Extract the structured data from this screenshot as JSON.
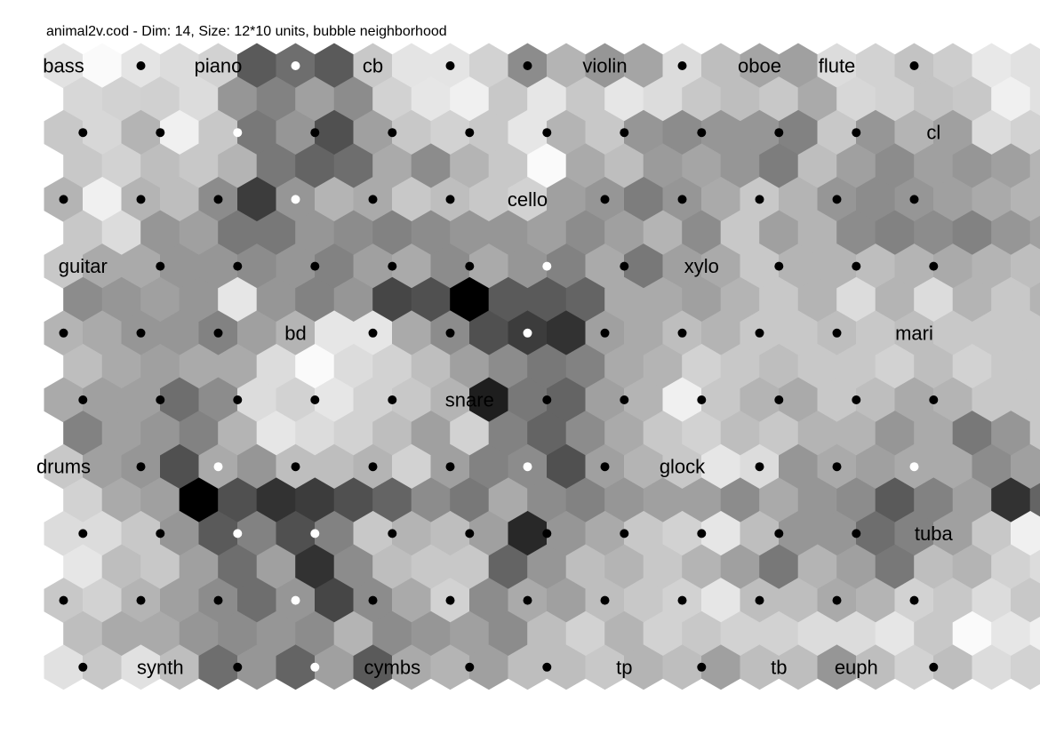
{
  "chart_data": {
    "type": "heatmap",
    "title": "animal2v.cod - Dim: 14, Size: 12*10 units, bubble neighborhood",
    "grid": {
      "cols": 12,
      "rows": 10,
      "topology": "hexagonal"
    },
    "umatrix": [
      [
        226,
        250,
        228,
        220,
        210,
        90,
        110,
        90,
        200,
        228,
        228,
        210,
        140,
        180,
        150,
        165,
        220,
        190,
        165,
        160,
        220,
        210,
        195,
        205,
        232,
        225,
        240
      ],
      [
        215,
        210,
        208,
        220,
        150,
        130,
        160,
        140,
        210,
        230,
        240,
        200,
        230,
        200,
        230,
        220,
        200,
        190,
        200,
        170,
        215,
        210,
        195,
        200,
        240,
        225,
        220
      ],
      [
        200,
        215,
        180,
        240,
        200,
        120,
        150,
        80,
        160,
        200,
        210,
        200,
        230,
        180,
        200,
        150,
        140,
        150,
        150,
        130,
        200,
        150,
        180,
        160,
        220,
        210,
        215
      ],
      [
        200,
        210,
        190,
        200,
        180,
        120,
        100,
        110,
        170,
        140,
        180,
        200,
        250,
        170,
        190,
        155,
        165,
        150,
        125,
        190,
        160,
        140,
        160,
        150,
        160,
        180,
        200
      ],
      [
        180,
        240,
        180,
        190,
        140,
        60,
        150,
        180,
        170,
        200,
        190,
        200,
        210,
        160,
        150,
        125,
        150,
        170,
        200,
        180,
        150,
        140,
        150,
        160,
        170,
        180,
        200
      ],
      [
        200,
        220,
        150,
        160,
        120,
        120,
        150,
        140,
        130,
        140,
        150,
        150,
        160,
        140,
        160,
        180,
        140,
        200,
        160,
        180,
        140,
        130,
        140,
        130,
        150,
        160,
        200
      ],
      [
        200,
        170,
        170,
        150,
        150,
        140,
        150,
        130,
        160,
        170,
        140,
        170,
        150,
        130,
        170,
        120,
        160,
        170,
        200,
        180,
        180,
        190,
        180,
        170,
        180,
        190,
        200
      ],
      [
        140,
        150,
        160,
        150,
        230,
        150,
        130,
        150,
        70,
        80,
        0,
        90,
        90,
        100,
        170,
        170,
        160,
        180,
        200,
        180,
        220,
        180,
        220,
        180,
        200,
        180,
        200
      ],
      [
        180,
        170,
        150,
        150,
        130,
        160,
        180,
        230,
        230,
        170,
        140,
        80,
        60,
        50,
        160,
        170,
        190,
        180,
        200,
        200,
        190,
        200,
        190,
        200,
        200,
        200,
        200
      ],
      [
        190,
        170,
        160,
        170,
        170,
        220,
        250,
        220,
        210,
        190,
        160,
        140,
        120,
        130,
        170,
        180,
        210,
        200,
        190,
        200,
        200,
        210,
        190,
        210,
        200,
        200,
        200
      ],
      [
        170,
        160,
        160,
        110,
        140,
        220,
        210,
        230,
        210,
        200,
        180,
        30,
        120,
        100,
        160,
        180,
        240,
        200,
        180,
        170,
        200,
        190,
        170,
        180,
        200,
        200,
        200
      ],
      [
        130,
        160,
        150,
        130,
        180,
        230,
        220,
        210,
        190,
        160,
        210,
        130,
        100,
        140,
        170,
        200,
        210,
        190,
        200,
        180,
        180,
        150,
        170,
        120,
        150,
        200,
        200
      ],
      [
        200,
        160,
        150,
        80,
        170,
        150,
        190,
        190,
        180,
        210,
        160,
        130,
        140,
        80,
        160,
        180,
        200,
        230,
        220,
        150,
        170,
        160,
        170,
        170,
        140,
        160,
        200
      ],
      [
        210,
        170,
        160,
        0,
        80,
        50,
        60,
        80,
        100,
        140,
        120,
        170,
        140,
        130,
        150,
        160,
        160,
        140,
        170,
        150,
        140,
        90,
        130,
        160,
        50,
        100,
        100
      ],
      [
        220,
        220,
        200,
        150,
        90,
        130,
        80,
        130,
        200,
        180,
        190,
        160,
        40,
        150,
        170,
        200,
        210,
        230,
        190,
        150,
        150,
        110,
        130,
        160,
        200,
        240,
        200
      ],
      [
        230,
        190,
        200,
        160,
        110,
        160,
        50,
        140,
        190,
        200,
        200,
        100,
        150,
        190,
        180,
        200,
        180,
        160,
        120,
        180,
        160,
        120,
        190,
        180,
        210,
        220,
        210
      ],
      [
        200,
        210,
        180,
        160,
        140,
        110,
        150,
        70,
        140,
        170,
        210,
        140,
        170,
        160,
        190,
        200,
        210,
        230,
        190,
        190,
        170,
        180,
        210,
        200,
        220,
        200,
        220
      ],
      [
        190,
        170,
        170,
        150,
        140,
        150,
        140,
        180,
        140,
        150,
        160,
        140,
        190,
        210,
        180,
        210,
        200,
        210,
        210,
        220,
        220,
        230,
        200,
        250,
        230,
        240,
        230
      ],
      [
        225,
        200,
        225,
        190,
        110,
        150,
        100,
        160,
        90,
        170,
        180,
        160,
        190,
        190,
        200,
        180,
        190,
        160,
        190,
        190,
        150,
        190,
        210,
        190,
        220,
        210,
        232
      ]
    ],
    "nodes": [
      {
        "r": 0,
        "c": 0,
        "label": "bass"
      },
      {
        "r": 0,
        "c": 1,
        "color": "black"
      },
      {
        "r": 0,
        "c": 2,
        "label": "piano"
      },
      {
        "r": 0,
        "c": 3,
        "color": "white"
      },
      {
        "r": 0,
        "c": 4,
        "label": "cb"
      },
      {
        "r": 0,
        "c": 5,
        "color": "black"
      },
      {
        "r": 0,
        "c": 6,
        "color": "black"
      },
      {
        "r": 0,
        "c": 7,
        "label": "violin"
      },
      {
        "r": 0,
        "c": 8,
        "color": "black"
      },
      {
        "r": 0,
        "c": 9,
        "label": "oboe"
      },
      {
        "r": 0,
        "c": 10,
        "label": "flute"
      },
      {
        "r": 0,
        "c": 11,
        "color": "black"
      },
      {
        "r": 1,
        "c": 0,
        "color": "black"
      },
      {
        "r": 1,
        "c": 1,
        "color": "black"
      },
      {
        "r": 1,
        "c": 2,
        "color": "white"
      },
      {
        "r": 1,
        "c": 3,
        "color": "black"
      },
      {
        "r": 1,
        "c": 4,
        "color": "black"
      },
      {
        "r": 1,
        "c": 5,
        "color": "black"
      },
      {
        "r": 1,
        "c": 6,
        "color": "black"
      },
      {
        "r": 1,
        "c": 7,
        "color": "black"
      },
      {
        "r": 1,
        "c": 8,
        "color": "black"
      },
      {
        "r": 1,
        "c": 9,
        "color": "black"
      },
      {
        "r": 1,
        "c": 10,
        "color": "black"
      },
      {
        "r": 1,
        "c": 11,
        "label": "cl"
      },
      {
        "r": 2,
        "c": 0,
        "color": "black"
      },
      {
        "r": 2,
        "c": 1,
        "color": "black"
      },
      {
        "r": 2,
        "c": 2,
        "color": "black"
      },
      {
        "r": 2,
        "c": 3,
        "color": "white"
      },
      {
        "r": 2,
        "c": 4,
        "color": "black"
      },
      {
        "r": 2,
        "c": 5,
        "color": "black"
      },
      {
        "r": 2,
        "c": 6,
        "label": "cello"
      },
      {
        "r": 2,
        "c": 7,
        "color": "black"
      },
      {
        "r": 2,
        "c": 8,
        "color": "black"
      },
      {
        "r": 2,
        "c": 9,
        "color": "black"
      },
      {
        "r": 2,
        "c": 10,
        "color": "black"
      },
      {
        "r": 2,
        "c": 11,
        "color": "black"
      },
      {
        "r": 3,
        "c": 0,
        "label": "guitar"
      },
      {
        "r": 3,
        "c": 1,
        "color": "black"
      },
      {
        "r": 3,
        "c": 2,
        "color": "black"
      },
      {
        "r": 3,
        "c": 3,
        "color": "black"
      },
      {
        "r": 3,
        "c": 4,
        "color": "black"
      },
      {
        "r": 3,
        "c": 5,
        "color": "black"
      },
      {
        "r": 3,
        "c": 6,
        "color": "white"
      },
      {
        "r": 3,
        "c": 7,
        "color": "black"
      },
      {
        "r": 3,
        "c": 8,
        "label": "xylo"
      },
      {
        "r": 3,
        "c": 9,
        "color": "black"
      },
      {
        "r": 3,
        "c": 10,
        "color": "black"
      },
      {
        "r": 3,
        "c": 11,
        "color": "black"
      },
      {
        "r": 4,
        "c": 0,
        "color": "black"
      },
      {
        "r": 4,
        "c": 1,
        "color": "black"
      },
      {
        "r": 4,
        "c": 2,
        "color": "black"
      },
      {
        "r": 4,
        "c": 3,
        "label": "bd"
      },
      {
        "r": 4,
        "c": 4,
        "color": "black"
      },
      {
        "r": 4,
        "c": 5,
        "color": "black"
      },
      {
        "r": 4,
        "c": 6,
        "color": "white"
      },
      {
        "r": 4,
        "c": 7,
        "color": "black"
      },
      {
        "r": 4,
        "c": 8,
        "color": "black"
      },
      {
        "r": 4,
        "c": 9,
        "color": "black"
      },
      {
        "r": 4,
        "c": 10,
        "color": "black"
      },
      {
        "r": 4,
        "c": 11,
        "label": "mari"
      },
      {
        "r": 5,
        "c": 0,
        "color": "black"
      },
      {
        "r": 5,
        "c": 1,
        "color": "black"
      },
      {
        "r": 5,
        "c": 2,
        "color": "black"
      },
      {
        "r": 5,
        "c": 3,
        "color": "black"
      },
      {
        "r": 5,
        "c": 4,
        "color": "black"
      },
      {
        "r": 5,
        "c": 5,
        "label": "snare"
      },
      {
        "r": 5,
        "c": 6,
        "color": "black"
      },
      {
        "r": 5,
        "c": 7,
        "color": "black"
      },
      {
        "r": 5,
        "c": 8,
        "color": "black"
      },
      {
        "r": 5,
        "c": 9,
        "color": "black"
      },
      {
        "r": 5,
        "c": 10,
        "color": "black"
      },
      {
        "r": 5,
        "c": 11,
        "color": "black"
      },
      {
        "r": 6,
        "c": 0,
        "label": "drums"
      },
      {
        "r": 6,
        "c": 1,
        "color": "black"
      },
      {
        "r": 6,
        "c": 2,
        "color": "white"
      },
      {
        "r": 6,
        "c": 3,
        "color": "black"
      },
      {
        "r": 6,
        "c": 4,
        "color": "black"
      },
      {
        "r": 6,
        "c": 5,
        "color": "black"
      },
      {
        "r": 6,
        "c": 6,
        "color": "white"
      },
      {
        "r": 6,
        "c": 7,
        "color": "black"
      },
      {
        "r": 6,
        "c": 8,
        "label": "glock"
      },
      {
        "r": 6,
        "c": 9,
        "color": "black"
      },
      {
        "r": 6,
        "c": 10,
        "color": "black"
      },
      {
        "r": 6,
        "c": 11,
        "color": "white"
      },
      {
        "r": 7,
        "c": 0,
        "color": "black"
      },
      {
        "r": 7,
        "c": 1,
        "color": "black"
      },
      {
        "r": 7,
        "c": 2,
        "color": "white"
      },
      {
        "r": 7,
        "c": 3,
        "color": "white"
      },
      {
        "r": 7,
        "c": 4,
        "color": "black"
      },
      {
        "r": 7,
        "c": 5,
        "color": "black"
      },
      {
        "r": 7,
        "c": 6,
        "color": "black"
      },
      {
        "r": 7,
        "c": 7,
        "color": "black"
      },
      {
        "r": 7,
        "c": 8,
        "color": "black"
      },
      {
        "r": 7,
        "c": 9,
        "color": "black"
      },
      {
        "r": 7,
        "c": 10,
        "color": "black"
      },
      {
        "r": 7,
        "c": 11,
        "label": "tuba"
      },
      {
        "r": 8,
        "c": 0,
        "color": "black"
      },
      {
        "r": 8,
        "c": 1,
        "color": "black"
      },
      {
        "r": 8,
        "c": 2,
        "color": "black"
      },
      {
        "r": 8,
        "c": 3,
        "color": "white"
      },
      {
        "r": 8,
        "c": 4,
        "color": "black"
      },
      {
        "r": 8,
        "c": 5,
        "color": "black"
      },
      {
        "r": 8,
        "c": 6,
        "color": "black"
      },
      {
        "r": 8,
        "c": 7,
        "color": "black"
      },
      {
        "r": 8,
        "c": 8,
        "color": "black"
      },
      {
        "r": 8,
        "c": 9,
        "color": "black"
      },
      {
        "r": 8,
        "c": 10,
        "color": "black"
      },
      {
        "r": 8,
        "c": 11,
        "color": "black"
      },
      {
        "r": 9,
        "c": 0,
        "color": "black"
      },
      {
        "r": 9,
        "c": 1,
        "label": "synth"
      },
      {
        "r": 9,
        "c": 2,
        "color": "black"
      },
      {
        "r": 9,
        "c": 3,
        "color": "white"
      },
      {
        "r": 9,
        "c": 4,
        "label": "cymbs"
      },
      {
        "r": 9,
        "c": 5,
        "color": "black"
      },
      {
        "r": 9,
        "c": 6,
        "color": "black"
      },
      {
        "r": 9,
        "c": 7,
        "label": "tp"
      },
      {
        "r": 9,
        "c": 8,
        "color": "black"
      },
      {
        "r": 9,
        "c": 9,
        "label": "tb"
      },
      {
        "r": 9,
        "c": 10,
        "label": "euph"
      },
      {
        "r": 9,
        "c": 11,
        "color": "black"
      }
    ]
  }
}
